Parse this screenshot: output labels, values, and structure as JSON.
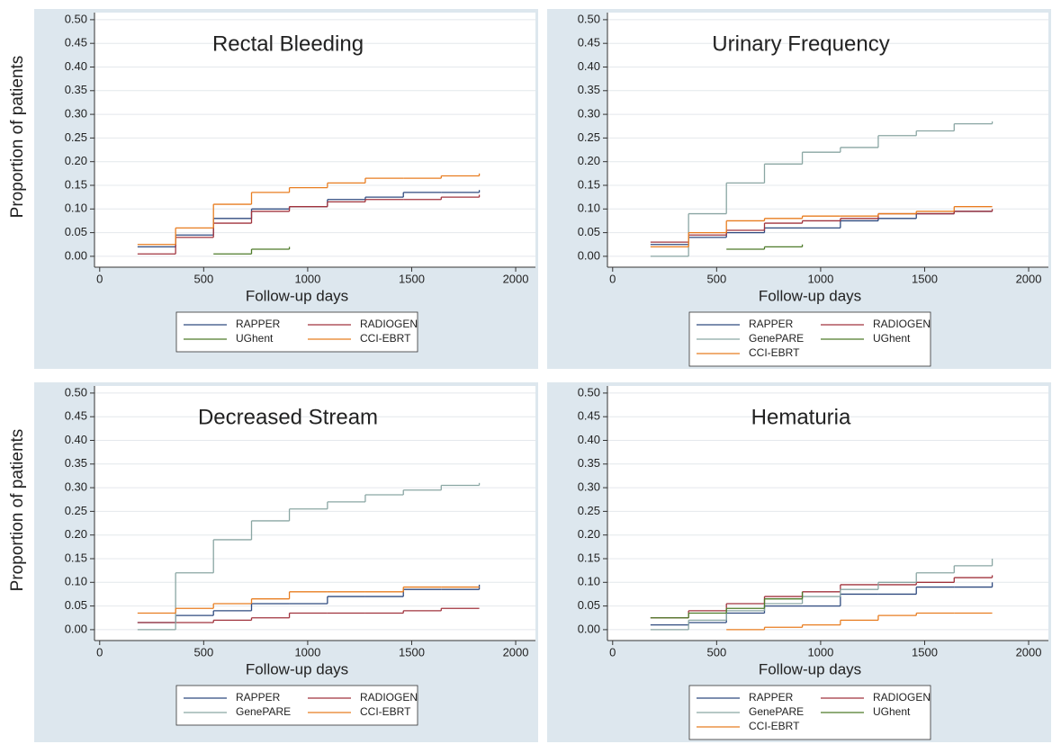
{
  "chart_data": [
    {
      "type": "step",
      "title": "Rectal Bleeding",
      "xlabel": "Follow-up days",
      "ylabel": "Proportion of patients",
      "x": [
        182,
        365,
        547,
        730,
        912,
        1095,
        1277,
        1460,
        1642,
        1825
      ],
      "xlim": [
        -25,
        2095
      ],
      "xticks": [
        0,
        500,
        1000,
        1500,
        2000
      ],
      "ylim": [
        -0.023,
        0.515
      ],
      "yticks": [
        {
          "value": 0,
          "label": "0.00"
        },
        {
          "value": 0.05,
          "label": "0.05"
        },
        {
          "value": 0.1,
          "label": "0.10"
        },
        {
          "value": 0.15,
          "label": "0.15"
        },
        {
          "value": 0.2,
          "label": "0.20"
        },
        {
          "value": 0.25,
          "label": "0.25"
        },
        {
          "value": 0.3,
          "label": "0.30"
        },
        {
          "value": 0.35,
          "label": "0.35"
        },
        {
          "value": 0.4,
          "label": "0.40"
        },
        {
          "value": 0.45,
          "label": "0.45"
        },
        {
          "value": 0.5,
          "label": "0.50"
        }
      ],
      "grid": true,
      "series": [
        {
          "name": "RAPPER",
          "color": "#2f4a7f",
          "values": [
            0.02,
            0.045,
            0.08,
            0.1,
            0.105,
            0.12,
            0.125,
            0.135,
            0.135,
            0.14
          ]
        },
        {
          "name": "RADIOGEN",
          "color": "#a0333d",
          "values": [
            0.005,
            0.04,
            0.07,
            0.095,
            0.105,
            0.115,
            0.12,
            0.12,
            0.125,
            0.13
          ]
        },
        {
          "name": "UGhent",
          "color": "#4d7a29",
          "values": [
            null,
            null,
            0.005,
            0.015,
            0.02,
            null,
            null,
            null,
            null,
            null
          ]
        },
        {
          "name": "CCI-EBRT",
          "color": "#e87d20",
          "values": [
            0.025,
            0.06,
            0.11,
            0.135,
            0.145,
            0.155,
            0.165,
            0.165,
            0.17,
            0.175
          ]
        }
      ]
    },
    {
      "type": "step",
      "title": "Urinary Frequency",
      "xlabel": "Follow-up days",
      "x": [
        182,
        365,
        547,
        730,
        912,
        1095,
        1277,
        1460,
        1642,
        1825
      ],
      "xlim": [
        -25,
        2095
      ],
      "xticks": [
        0,
        500,
        1000,
        1500,
        2000
      ],
      "ylim": [
        -0.023,
        0.515
      ],
      "yticks": [
        {
          "value": 0,
          "label": "0.00"
        },
        {
          "value": 0.05,
          "label": "0.05"
        },
        {
          "value": 0.1,
          "label": "0.10"
        },
        {
          "value": 0.15,
          "label": "0.15"
        },
        {
          "value": 0.2,
          "label": "0.20"
        },
        {
          "value": 0.25,
          "label": "0.25"
        },
        {
          "value": 0.3,
          "label": "0.30"
        },
        {
          "value": 0.35,
          "label": "0.35"
        },
        {
          "value": 0.4,
          "label": "0.40"
        },
        {
          "value": 0.45,
          "label": "0.45"
        },
        {
          "value": 0.5,
          "label": "0.50"
        }
      ],
      "grid": true,
      "series": [
        {
          "name": "RAPPER",
          "color": "#2f4a7f",
          "values": [
            0.025,
            0.04,
            0.05,
            0.06,
            0.06,
            0.075,
            0.08,
            0.09,
            0.095,
            0.095
          ]
        },
        {
          "name": "RADIOGEN",
          "color": "#a0333d",
          "values": [
            0.03,
            0.045,
            0.055,
            0.07,
            0.075,
            0.08,
            0.09,
            0.09,
            0.095,
            0.1
          ]
        },
        {
          "name": "GenePARE",
          "color": "#8aa6a3",
          "values": [
            0,
            0.09,
            0.155,
            0.195,
            0.22,
            0.23,
            0.255,
            0.265,
            0.28,
            0.285
          ]
        },
        {
          "name": "UGhent",
          "color": "#4d7a29",
          "values": [
            null,
            null,
            0.015,
            0.02,
            0.025,
            null,
            null,
            null,
            null,
            null
          ]
        },
        {
          "name": "CCI-EBRT",
          "color": "#e87d20",
          "values": [
            0.02,
            0.05,
            0.075,
            0.08,
            0.085,
            0.085,
            0.09,
            0.095,
            0.105,
            0.105
          ]
        }
      ]
    },
    {
      "type": "step",
      "title": "Decreased Stream",
      "xlabel": "Follow-up days",
      "ylabel": "Proportion of patients",
      "x": [
        182,
        365,
        547,
        730,
        912,
        1095,
        1277,
        1460,
        1642,
        1825
      ],
      "xlim": [
        -25,
        2095
      ],
      "xticks": [
        0,
        500,
        1000,
        1500,
        2000
      ],
      "ylim": [
        -0.023,
        0.515
      ],
      "yticks": [
        {
          "value": 0,
          "label": "0.00"
        },
        {
          "value": 0.05,
          "label": "0.05"
        },
        {
          "value": 0.1,
          "label": "0.10"
        },
        {
          "value": 0.15,
          "label": "0.15"
        },
        {
          "value": 0.2,
          "label": "0.20"
        },
        {
          "value": 0.25,
          "label": "0.25"
        },
        {
          "value": 0.3,
          "label": "0.30"
        },
        {
          "value": 0.35,
          "label": "0.35"
        },
        {
          "value": 0.4,
          "label": "0.40"
        },
        {
          "value": 0.45,
          "label": "0.45"
        },
        {
          "value": 0.5,
          "label": "0.50"
        }
      ],
      "grid": true,
      "series": [
        {
          "name": "RAPPER",
          "color": "#2f4a7f",
          "values": [
            0.015,
            0.03,
            0.04,
            0.055,
            0.055,
            0.07,
            0.07,
            0.085,
            0.085,
            0.095
          ]
        },
        {
          "name": "RADIOGEN",
          "color": "#a0333d",
          "values": [
            0.015,
            0.015,
            0.02,
            0.025,
            0.035,
            0.035,
            0.035,
            0.04,
            0.045,
            0.045
          ]
        },
        {
          "name": "GenePARE",
          "color": "#8aa6a3",
          "values": [
            0,
            0.12,
            0.19,
            0.23,
            0.255,
            0.27,
            0.285,
            0.295,
            0.305,
            0.31
          ]
        },
        {
          "name": "CCI-EBRT",
          "color": "#e87d20",
          "values": [
            0.035,
            0.045,
            0.055,
            0.065,
            0.08,
            0.08,
            0.08,
            0.09,
            0.09,
            0.09
          ]
        }
      ]
    },
    {
      "type": "step",
      "title": "Hematuria",
      "xlabel": "Follow-up days",
      "x": [
        182,
        365,
        547,
        730,
        912,
        1095,
        1277,
        1460,
        1642,
        1825
      ],
      "xlim": [
        -25,
        2095
      ],
      "xticks": [
        0,
        500,
        1000,
        1500,
        2000
      ],
      "ylim": [
        -0.023,
        0.515
      ],
      "yticks": [
        {
          "value": 0,
          "label": "0.00"
        },
        {
          "value": 0.05,
          "label": "0.05"
        },
        {
          "value": 0.1,
          "label": "0.10"
        },
        {
          "value": 0.15,
          "label": "0.15"
        },
        {
          "value": 0.2,
          "label": "0.20"
        },
        {
          "value": 0.25,
          "label": "0.25"
        },
        {
          "value": 0.3,
          "label": "0.30"
        },
        {
          "value": 0.35,
          "label": "0.35"
        },
        {
          "value": 0.4,
          "label": "0.40"
        },
        {
          "value": 0.45,
          "label": "0.45"
        },
        {
          "value": 0.5,
          "label": "0.50"
        }
      ],
      "grid": true,
      "series": [
        {
          "name": "RAPPER",
          "color": "#2f4a7f",
          "values": [
            0.01,
            0.015,
            0.035,
            0.05,
            0.05,
            0.075,
            0.075,
            0.09,
            0.09,
            0.1
          ]
        },
        {
          "name": "RADIOGEN",
          "color": "#a0333d",
          "values": [
            0.025,
            0.04,
            0.055,
            0.07,
            0.08,
            0.095,
            0.095,
            0.1,
            0.11,
            0.115
          ]
        },
        {
          "name": "GenePARE",
          "color": "#8aa6a3",
          "values": [
            0,
            0.02,
            0.04,
            0.055,
            0.07,
            0.085,
            0.1,
            0.12,
            0.135,
            0.15
          ]
        },
        {
          "name": "UGhent",
          "color": "#4d7a29",
          "values": [
            0.025,
            0.035,
            0.045,
            0.065,
            0.08,
            null,
            null,
            null,
            null,
            null
          ]
        },
        {
          "name": "CCI-EBRT",
          "color": "#e87d20",
          "values": [
            null,
            null,
            0,
            0.005,
            0.01,
            0.02,
            0.03,
            0.035,
            0.035,
            0.035
          ]
        }
      ]
    }
  ]
}
